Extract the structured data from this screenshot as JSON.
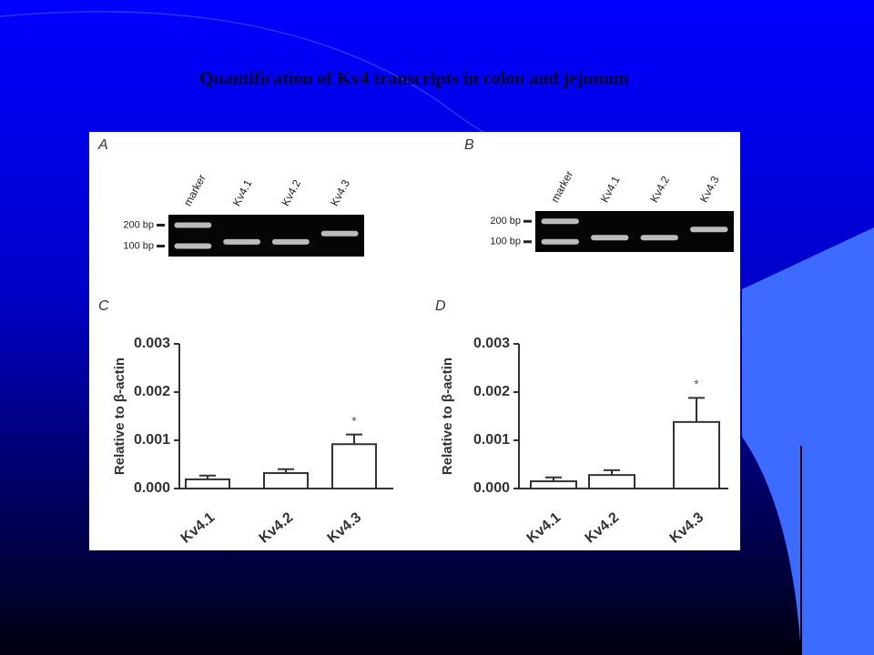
{
  "slide": {
    "title": "Quantification of Kv4 transcripts in colon and jejunum"
  },
  "gels": [
    {
      "panel": "A",
      "lanes": [
        "marker",
        "Kv4.1",
        "Kv4.2",
        "Kv4.3"
      ],
      "markers": [
        "200 bp",
        "100 bp"
      ]
    },
    {
      "panel": "B",
      "lanes": [
        "marker",
        "Kv4.1",
        "Kv4.2",
        "Kv4.3"
      ],
      "markers": [
        "200 bp",
        "100 bp"
      ]
    }
  ],
  "chart_data": [
    {
      "type": "bar",
      "panel": "C",
      "ylabel": "Relative to β-actin",
      "categories": [
        "Kv4.1",
        "Kv4.2",
        "Kv4.3"
      ],
      "values": [
        0.00019,
        0.00032,
        0.00092
      ],
      "errors": [
        8e-05,
        8e-05,
        0.0002
      ],
      "annotation": "*",
      "color": "#ffffff",
      "ylim": [
        0,
        0.003
      ],
      "yticks": [
        {
          "value": 0,
          "label": "0.000"
        },
        0.001,
        0.002,
        0.003
      ]
    },
    {
      "type": "bar",
      "panel": "D",
      "ylabel": "Relative to β-actin",
      "categories": [
        "Kv4.1",
        "Kv4.2",
        "Kv4.3"
      ],
      "values": [
        0.00015,
        0.00028,
        0.00138
      ],
      "errors": [
        8e-05,
        0.0001,
        0.0005
      ],
      "annotation": "*",
      "color": "#ffffff",
      "ylim": [
        0,
        0.003
      ],
      "yticks": [
        {
          "value": 0,
          "label": "0.000"
        },
        0.001,
        0.002,
        0.003
      ]
    }
  ]
}
